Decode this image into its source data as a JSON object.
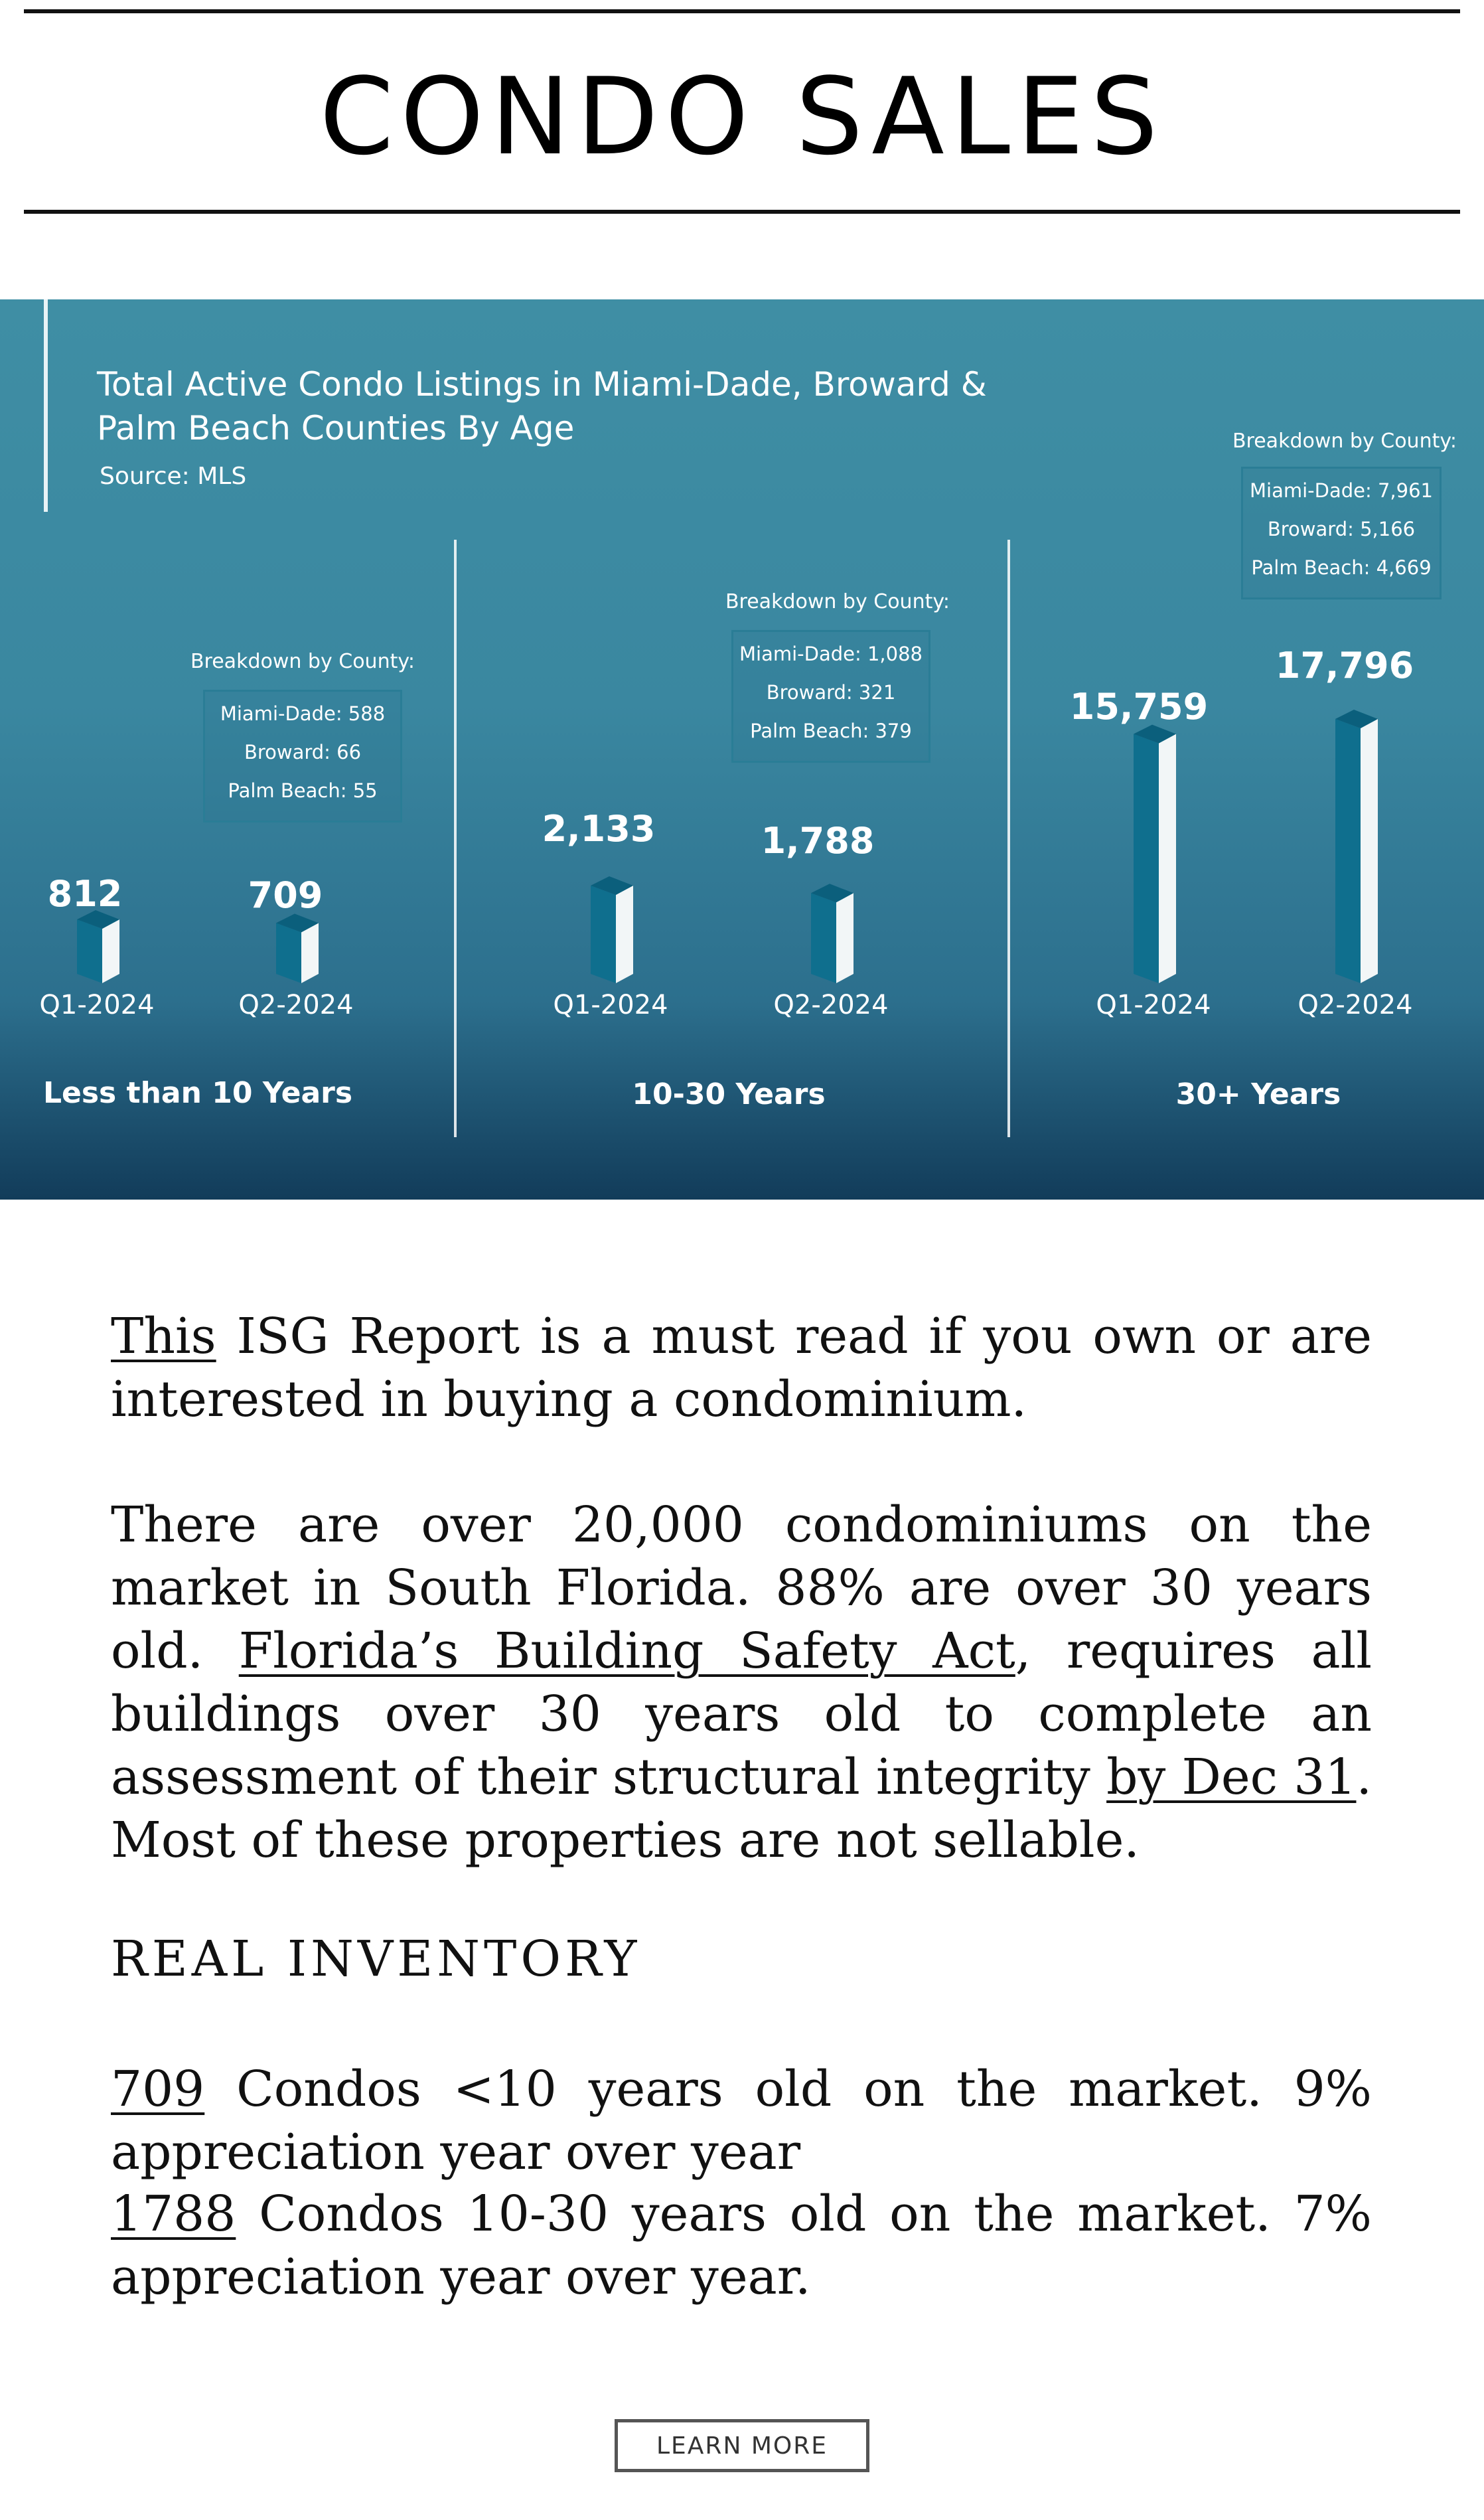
{
  "header": {
    "title": "CONDO SALES"
  },
  "infographic": {
    "title_line1": "Total Active Condo Listings in Miami-Dade, Broward &",
    "title_line2": "Palm Beach Counties By Age",
    "source": "Source: MLS",
    "breakdown_title": "Breakdown by County:",
    "colors": {
      "bar_front": "#0f6f8e",
      "bar_side": "#f2f6f7",
      "bar_top": "#0b5f7c",
      "box_border": "#2a7d96"
    },
    "groups": [
      {
        "label": "Less than 10 Years",
        "breakdown": [
          "Miami-Dade: 588",
          "Broward: 66",
          "Palm Beach: 55"
        ],
        "bars": [
          {
            "quarter": "Q1-2024",
            "value_label": "812"
          },
          {
            "quarter": "Q2-2024",
            "value_label": "709"
          }
        ]
      },
      {
        "label": "10-30 Years",
        "breakdown": [
          "Miami-Dade: 1,088",
          "Broward: 321",
          "Palm Beach: 379"
        ],
        "bars": [
          {
            "quarter": "Q1-2024",
            "value_label": "2,133"
          },
          {
            "quarter": "Q2-2024",
            "value_label": "1,788"
          }
        ]
      },
      {
        "label": "30+ Years",
        "breakdown": [
          "Miami-Dade: 7,961",
          "Broward: 5,166",
          "Palm Beach: 4,669"
        ],
        "bars": [
          {
            "quarter": "Q1-2024",
            "value_label": "15,759"
          },
          {
            "quarter": "Q2-2024",
            "value_label": "17,796"
          }
        ]
      }
    ]
  },
  "chart_data": {
    "type": "bar",
    "title": "Total Active Condo Listings in Miami-Dade, Broward & Palm Beach Counties By Age",
    "source": "Source: MLS",
    "groups": [
      "Less than 10 Years",
      "10-30 Years",
      "30+ Years"
    ],
    "categories": [
      "Q1-2024",
      "Q2-2024"
    ],
    "series": [
      {
        "name": "Less than 10 Years",
        "values": [
          812,
          709
        ]
      },
      {
        "name": "10-30 Years",
        "values": [
          2133,
          1788
        ]
      },
      {
        "name": "30+ Years",
        "values": [
          15759,
          17796
        ]
      }
    ],
    "ylim": [
      0,
      17796
    ],
    "grid": false
  },
  "article": {
    "p1_link": "This",
    "p1_rest": " ISG Report is a must read if you own or are interested in buying a condominium.",
    "p2_a": "There are over 20,000 condominiums on the market in South Florida. 88% are over 30 years old. ",
    "p2_link1": "Florida’s Building Safety Act",
    "p2_b": ", requires all buildings over 30 years old to complete an assessment of their structural integrity ",
    "p2_link2": "by Dec 31",
    "p2_c": ". Most of these properties are not sellable.",
    "heading": "REAL INVENTORY",
    "inv1_link": "709",
    "inv1_rest": " Condos <10 years old on the market. 9% appreciation year over year",
    "inv2_link": "1788",
    "inv2_rest": " Condos 10-30 years old on the market. 7% appreciation year over year."
  },
  "cta": {
    "label": "LEARN MORE"
  }
}
